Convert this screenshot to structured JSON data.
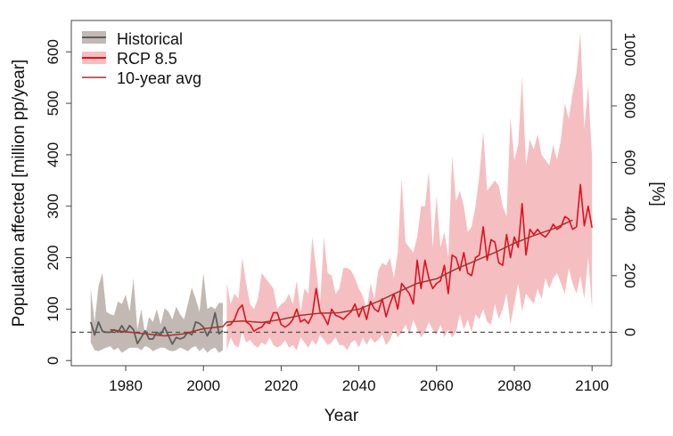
{
  "chart_data": {
    "type": "area",
    "xlabel": "Year",
    "ylabel": "Population affected [million pp/year]",
    "ylabel_right": "[%]",
    "xlim": [
      1966,
      2105
    ],
    "ylim": [
      -10,
      661
    ],
    "x_ticks": [
      1980,
      2000,
      2020,
      2040,
      2060,
      2080,
      2100
    ],
    "y_ticks": [
      0,
      100,
      200,
      300,
      400,
      500,
      600
    ],
    "y_right_ticks": [
      0,
      200,
      400,
      600,
      800,
      1000
    ],
    "y_right_reference": 55,
    "baseline": 55,
    "grid": false,
    "legend_position": "top-left",
    "colors": {
      "historical_fill": "#c2b9b4",
      "historical_line": "#5e5e5e",
      "rcp_fill": "#f5bfc2",
      "rcp_line": "#e0101c",
      "avg_line": "#a8322c",
      "baseline": "#555555"
    },
    "legend": [
      {
        "label": "Historical",
        "key": "historical"
      },
      {
        "label": "RCP 8.5",
        "key": "rcp"
      },
      {
        "label": "10-year avg",
        "key": "avg"
      }
    ],
    "series": [
      {
        "name": "Historical",
        "x_start": 1971,
        "mean": [
          75,
          50,
          75,
          57,
          55,
          55,
          60,
          55,
          68,
          55,
          68,
          60,
          33,
          45,
          58,
          42,
          42,
          55,
          50,
          65,
          48,
          32,
          45,
          42,
          45,
          55,
          50,
          75,
          72,
          65,
          48,
          62,
          93,
          52,
          58
        ],
        "upper": [
          140,
          75,
          145,
          170,
          95,
          90,
          88,
          115,
          110,
          128,
          95,
          160,
          60,
          100,
          50,
          85,
          75,
          100,
          70,
          102,
          95,
          80,
          105,
          90,
          80,
          110,
          142,
          120,
          95,
          170,
          100,
          105,
          100,
          112,
          112
        ],
        "lower": [
          35,
          20,
          18,
          22,
          25,
          28,
          20,
          25,
          15,
          20,
          25,
          25,
          25,
          20,
          28,
          25,
          18,
          22,
          25,
          25,
          20,
          18,
          20,
          25,
          22,
          18,
          25,
          28,
          18,
          25,
          15,
          22,
          25,
          15,
          20
        ]
      },
      {
        "name": "RCP 8.5",
        "x_start": 2006,
        "mean": [
          68,
          70,
          80,
          100,
          108,
          75,
          70,
          57,
          62,
          65,
          75,
          72,
          93,
          93,
          70,
          65,
          70,
          80,
          100,
          75,
          80,
          72,
          88,
          140,
          95,
          85,
          70,
          100,
          88,
          85,
          80,
          88,
          95,
          110,
          85,
          105,
          80,
          115,
          100,
          95,
          120,
          85,
          110,
          130,
          100,
          150,
          140,
          130,
          110,
          195,
          140,
          195,
          160,
          140,
          150,
          155,
          185,
          130,
          205,
          200,
          175,
          210,
          170,
          165,
          200,
          205,
          260,
          195,
          235,
          230,
          190,
          185,
          245,
          200,
          240,
          220,
          305,
          205,
          255,
          245,
          255,
          245,
          240,
          250,
          265,
          255,
          260,
          280,
          275,
          255,
          260,
          342,
          262,
          300,
          258
        ],
        "upper": [
          150,
          110,
          130,
          120,
          200,
          150,
          110,
          100,
          120,
          170,
          160,
          150,
          140,
          100,
          110,
          115,
          130,
          110,
          155,
          95,
          140,
          130,
          240,
          180,
          110,
          240,
          170,
          165,
          130,
          140,
          180,
          180,
          175,
          160,
          140,
          125,
          100,
          150,
          120,
          175,
          190,
          185,
          200,
          160,
          210,
          355,
          230,
          220,
          210,
          240,
          300,
          300,
          367,
          220,
          320,
          220,
          250,
          200,
          398,
          310,
          330,
          300,
          250,
          260,
          300,
          360,
          446,
          330,
          340,
          350,
          340,
          300,
          280,
          472,
          390,
          420,
          552,
          380,
          430,
          410,
          440,
          400,
          390,
          380,
          420,
          390,
          430,
          500,
          470,
          520,
          560,
          638,
          450,
          533,
          395
        ],
        "lower": [
          20,
          45,
          30,
          25,
          55,
          35,
          40,
          30,
          25,
          35,
          30,
          45,
          30,
          25,
          30,
          40,
          25,
          30,
          20,
          45,
          35,
          25,
          40,
          30,
          50,
          40,
          30,
          35,
          45,
          30,
          30,
          20,
          35,
          40,
          25,
          45,
          30,
          45,
          35,
          40,
          50,
          30,
          40,
          60,
          45,
          55,
          70,
          50,
          80,
          60,
          45,
          55,
          75,
          60,
          50,
          70,
          45,
          60,
          45,
          55,
          90,
          60,
          80,
          55,
          90,
          80,
          100,
          75,
          70,
          110,
          80,
          100,
          130,
          70,
          110,
          150,
          95,
          130,
          120,
          110,
          140,
          120,
          160,
          140,
          160,
          170,
          150,
          130,
          180,
          150,
          130,
          164,
          120,
          200,
          100
        ]
      },
      {
        "name": "10-year avg",
        "x": [
          1976,
          1980,
          1985,
          1990,
          1995,
          2000,
          2005,
          2006,
          2010,
          2015,
          2020,
          2025,
          2030,
          2035,
          2040,
          2045,
          2050,
          2055,
          2060,
          2065,
          2070,
          2075,
          2080,
          2085,
          2090,
          2095
        ],
        "y": [
          60,
          56,
          52,
          48,
          52,
          62,
          66,
          75,
          77,
          74,
          80,
          88,
          92,
          93,
          100,
          115,
          133,
          150,
          159,
          178,
          194,
          210,
          228,
          243,
          256,
          273
        ]
      }
    ]
  }
}
